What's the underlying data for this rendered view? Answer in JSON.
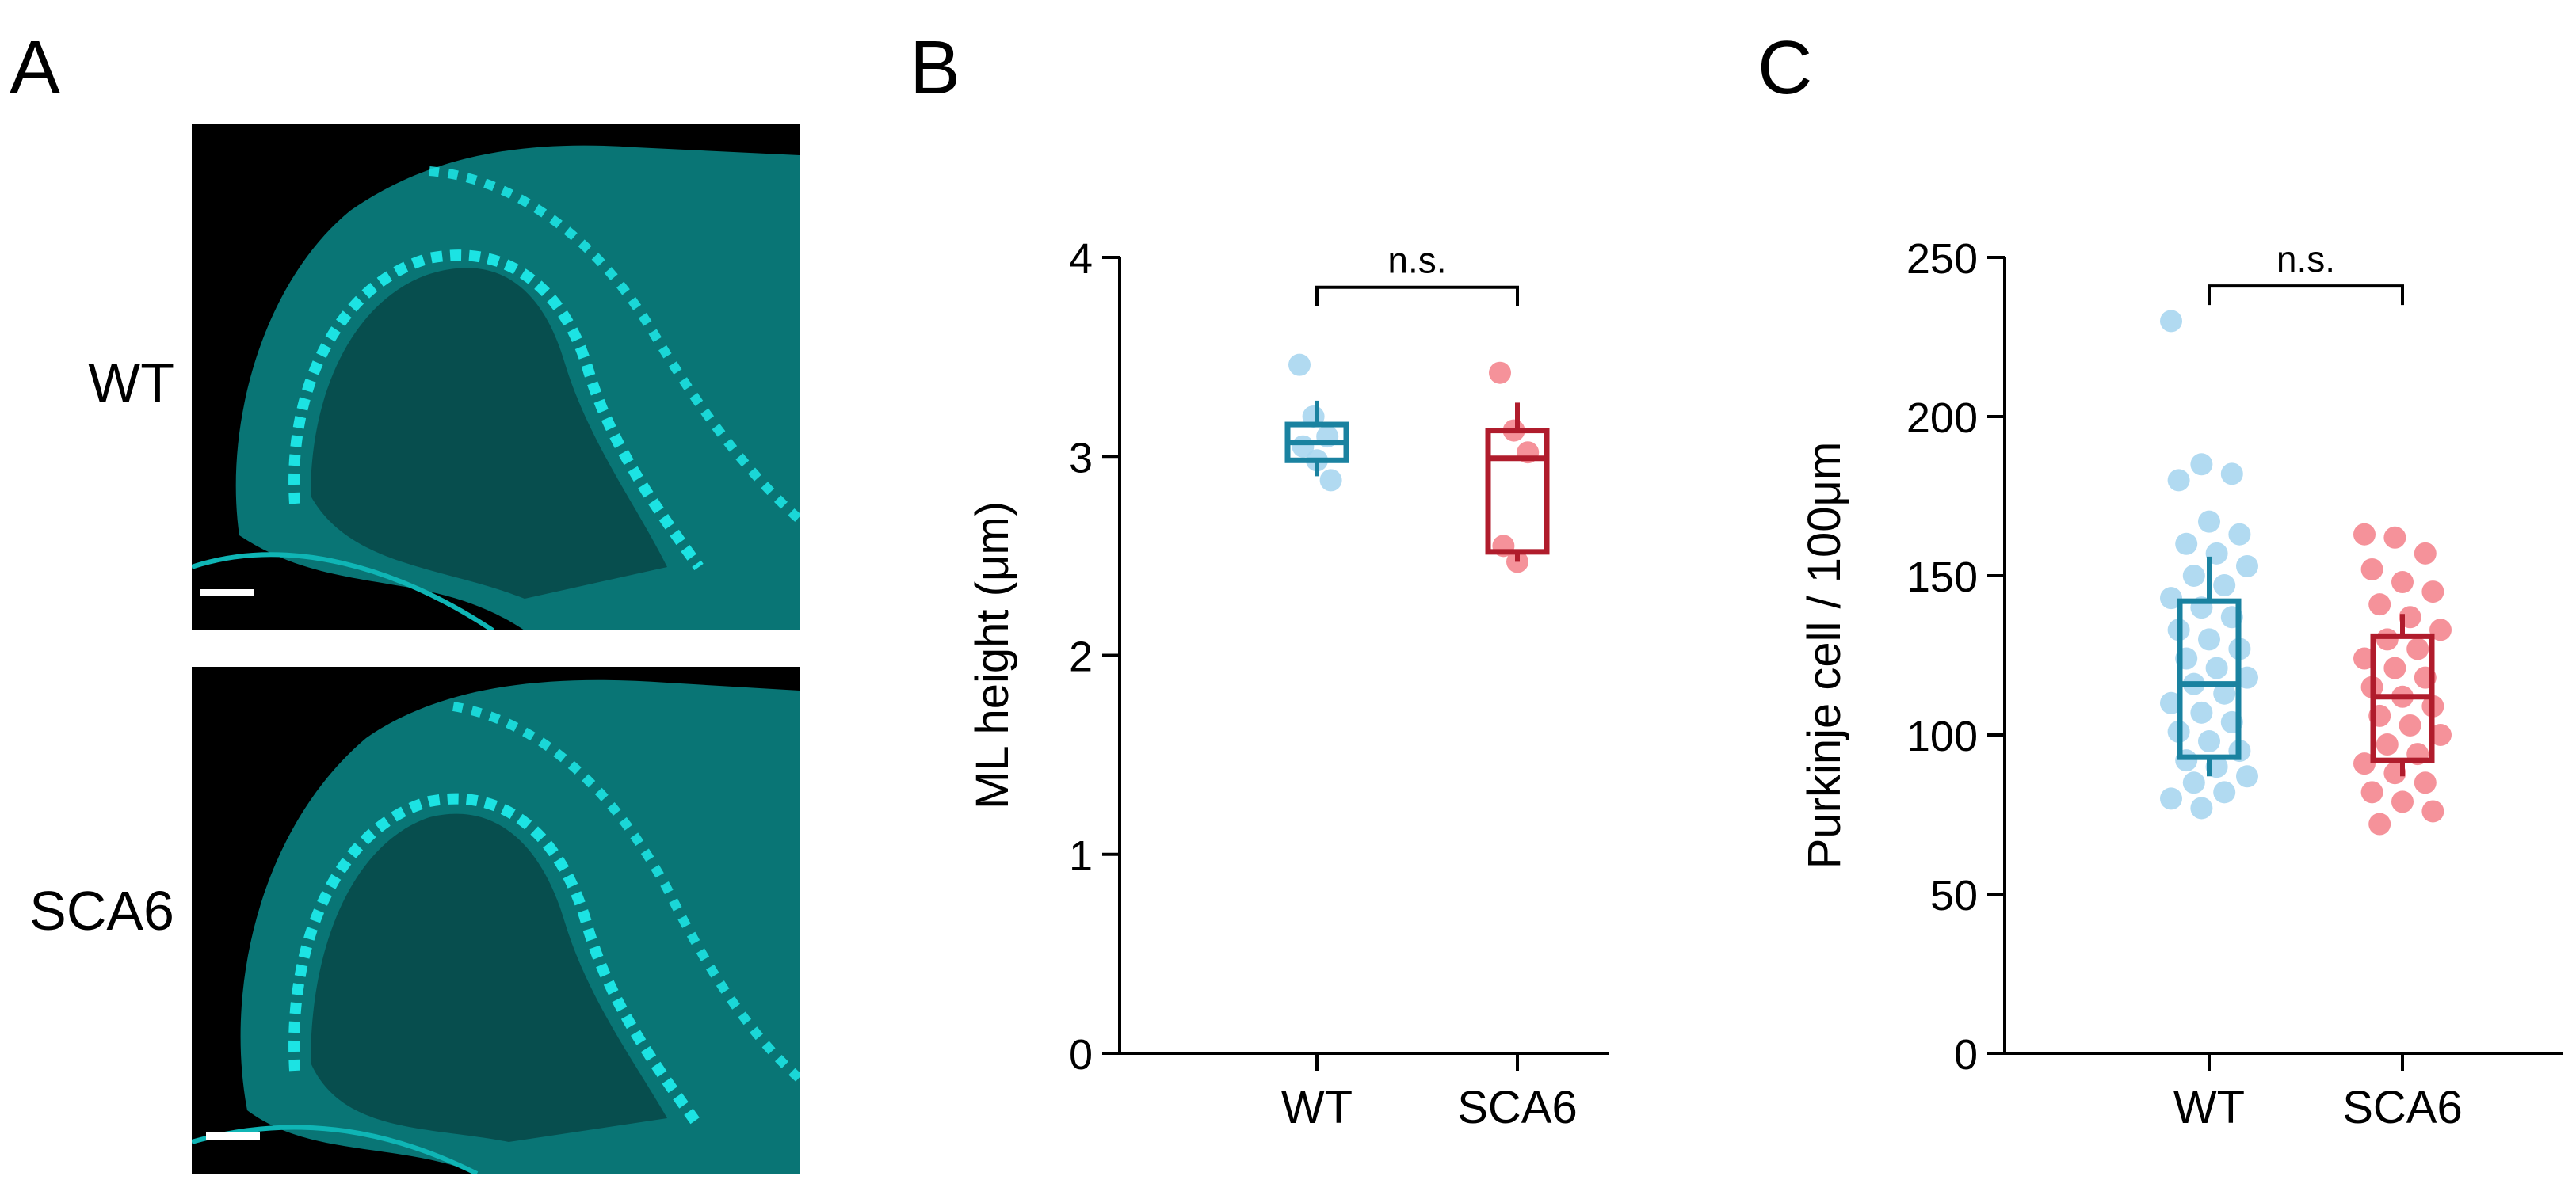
{
  "panels": {
    "a_label": "A",
    "b_label": "B",
    "c_label": "C"
  },
  "panel_a": {
    "rows": [
      {
        "label": "WT"
      },
      {
        "label": "SCA6"
      }
    ],
    "image_color": "#00e5e5",
    "scale_bar_color": "#ffffff"
  },
  "colors": {
    "wt_box": "#1a82a0",
    "wt_points": "#a9d6f0",
    "sca6_box": "#b01c2c",
    "sca6_points": "#f4868f",
    "axis": "#000000"
  },
  "chart_data": [
    {
      "type": "box",
      "panel": "B",
      "categories": [
        "WT",
        "SCA6"
      ],
      "ylabel": "ML height (μm)",
      "ylim": [
        0,
        4
      ],
      "yticks": [
        0,
        1,
        2,
        3,
        4
      ],
      "series": [
        {
          "category": "WT",
          "q1": 2.98,
          "median": 3.07,
          "q3": 3.16,
          "whisker_low": 2.9,
          "whisker_high": 3.28,
          "points": [
            3.46,
            3.2,
            3.1,
            3.05,
            2.98,
            2.88
          ]
        },
        {
          "category": "SCA6",
          "q1": 2.52,
          "median": 2.99,
          "q3": 3.13,
          "whisker_low": 2.47,
          "whisker_high": 3.27,
          "points": [
            3.42,
            3.13,
            3.02,
            2.55,
            2.47
          ]
        }
      ],
      "annotation": {
        "text": "n.s.",
        "between": [
          "WT",
          "SCA6"
        ],
        "y": 3.85
      }
    },
    {
      "type": "box",
      "panel": "C",
      "categories": [
        "WT",
        "SCA6"
      ],
      "ylabel": "Purkinje cell / 100μm",
      "ylim": [
        0,
        250
      ],
      "yticks": [
        0,
        50,
        100,
        150,
        200,
        250
      ],
      "series": [
        {
          "category": "WT",
          "q1": 93,
          "median": 116,
          "q3": 142,
          "whisker_low": 87,
          "whisker_high": 156,
          "points": [
            230,
            185,
            182,
            180,
            167,
            163,
            160,
            157,
            153,
            150,
            147,
            143,
            140,
            137,
            133,
            130,
            127,
            124,
            121,
            118,
            116,
            113,
            110,
            107,
            104,
            101,
            98,
            95,
            92,
            90,
            87,
            85,
            82,
            80,
            77
          ]
        },
        {
          "category": "SCA6",
          "q1": 92,
          "median": 112,
          "q3": 131,
          "whisker_low": 87,
          "whisker_high": 138,
          "points": [
            163,
            162,
            157,
            152,
            148,
            145,
            141,
            137,
            133,
            130,
            127,
            124,
            121,
            118,
            115,
            112,
            109,
            106,
            103,
            100,
            97,
            94,
            91,
            88,
            85,
            82,
            79,
            76,
            72
          ]
        }
      ],
      "annotation": {
        "text": "n.s.",
        "between": [
          "WT",
          "SCA6"
        ],
        "y": 241
      }
    }
  ]
}
